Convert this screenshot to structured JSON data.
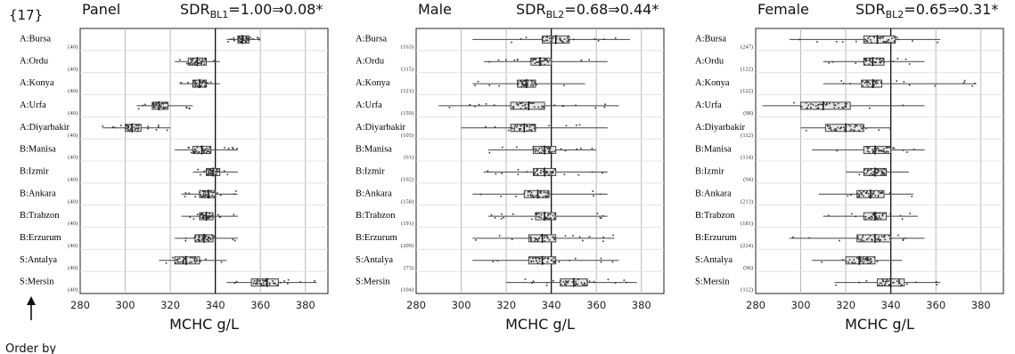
{
  "figure_label": "{17}",
  "order_label": "Order by",
  "colors": {
    "box_fill": "#e6e6e6",
    "box_stroke": "#444444",
    "dots": "#333333",
    "grid": "#b8b8b8",
    "axis": "#222222",
    "center_line": "#111111"
  },
  "chart_data": [
    {
      "type": "box",
      "title": "Panel",
      "annotation": {
        "prefix": "SDR",
        "sub": "BL1",
        "value": "=1.00⇒0.08*"
      },
      "xlabel": "MCHC  g/L",
      "xlim": [
        280,
        390
      ],
      "xticks": [
        280,
        300,
        320,
        340,
        360,
        380
      ],
      "reference_line": 340,
      "grid": true,
      "categories": [
        "A:Bursa",
        "A:Ordu",
        "A:Konya",
        "A:Urfa",
        "A:Diyarbakir",
        "B:Manisa",
        "B:Izmir",
        "B:Ankara",
        "B:Trabzon",
        "B:Erzurum",
        "S:Antalya",
        "S:Mersin"
      ],
      "n": [
        "(40)",
        "(40)",
        "(40)",
        "(40)",
        "(40)",
        "(40)",
        "(40)",
        "(40)",
        "(40)",
        "(40)",
        "(40)",
        "(40)"
      ],
      "boxes": [
        {
          "q1": 350,
          "median": 352,
          "q3": 355,
          "min": 345,
          "max": 360
        },
        {
          "q1": 328,
          "median": 332,
          "q3": 336,
          "min": 322,
          "max": 342
        },
        {
          "q1": 330,
          "median": 333,
          "q3": 336,
          "min": 324,
          "max": 342
        },
        {
          "q1": 312,
          "median": 315,
          "q3": 319,
          "min": 305,
          "max": 330
        },
        {
          "q1": 300,
          "median": 303,
          "q3": 307,
          "min": 290,
          "max": 320
        },
        {
          "q1": 330,
          "median": 334,
          "q3": 338,
          "min": 322,
          "max": 350
        },
        {
          "q1": 336,
          "median": 339,
          "q3": 342,
          "min": 330,
          "max": 350
        },
        {
          "q1": 333,
          "median": 337,
          "q3": 340,
          "min": 325,
          "max": 350
        },
        {
          "q1": 333,
          "median": 336,
          "q3": 339,
          "min": 325,
          "max": 350
        },
        {
          "q1": 331,
          "median": 335,
          "q3": 339,
          "min": 322,
          "max": 350
        },
        {
          "q1": 322,
          "median": 327,
          "q3": 333,
          "min": 315,
          "max": 345
        },
        {
          "q1": 356,
          "median": 363,
          "q3": 368,
          "min": 345,
          "max": 385
        }
      ]
    },
    {
      "type": "box",
      "title": "Male",
      "annotation": {
        "prefix": "SDR",
        "sub": "BL2",
        "value": "=0.68⇒0.44*"
      },
      "xlabel": "MCHC  g/L",
      "xlim": [
        280,
        390
      ],
      "xticks": [
        280,
        300,
        320,
        340,
        360,
        380
      ],
      "reference_line": 340,
      "grid": true,
      "categories": [
        "A:Bursa",
        "A:Ordu",
        "A:Konya",
        "A:Urfa",
        "A:Diyarbakir",
        "B:Manisa",
        "B:Izmir",
        "B:Ankara",
        "B:Trabzon",
        "B:Erzurum",
        "S:Antalya",
        "S:Mersin"
      ],
      "n": [
        "(163)",
        "(115)",
        "(121)",
        "(159)",
        "(105)",
        "(61)",
        "(102)",
        "(158)",
        "(191)",
        "(209)",
        "(73)",
        "(104)"
      ],
      "boxes": [
        {
          "q1": 336,
          "median": 342,
          "q3": 348,
          "min": 305,
          "max": 375
        },
        {
          "q1": 331,
          "median": 335,
          "q3": 340,
          "min": 310,
          "max": 365
        },
        {
          "q1": 325,
          "median": 329,
          "q3": 333,
          "min": 305,
          "max": 355
        },
        {
          "q1": 322,
          "median": 330,
          "q3": 337,
          "min": 290,
          "max": 370
        },
        {
          "q1": 322,
          "median": 328,
          "q3": 333,
          "min": 300,
          "max": 365
        },
        {
          "q1": 332,
          "median": 337,
          "q3": 342,
          "min": 312,
          "max": 360
        },
        {
          "q1": 332,
          "median": 337,
          "q3": 342,
          "min": 310,
          "max": 365
        },
        {
          "q1": 328,
          "median": 334,
          "q3": 339,
          "min": 305,
          "max": 365
        },
        {
          "q1": 333,
          "median": 337,
          "q3": 342,
          "min": 312,
          "max": 365
        },
        {
          "q1": 330,
          "median": 336,
          "q3": 342,
          "min": 305,
          "max": 368
        },
        {
          "q1": 330,
          "median": 336,
          "q3": 342,
          "min": 305,
          "max": 370
        },
        {
          "q1": 344,
          "median": 350,
          "q3": 356,
          "min": 320,
          "max": 378
        }
      ]
    },
    {
      "type": "box",
      "title": "Female",
      "annotation": {
        "prefix": "SDR",
        "sub": "BL2",
        "value": "=0.65⇒0.31*"
      },
      "xlabel": "MCHC  g/L",
      "xlim": [
        280,
        390
      ],
      "xticks": [
        280,
        300,
        320,
        340,
        360,
        380
      ],
      "reference_line": 340,
      "grid": true,
      "categories": [
        "A:Bursa",
        "A:Ordu",
        "A:Konya",
        "A:Urfa",
        "A:Diyarbakir",
        "B:Manisa",
        "B:Izmir",
        "B:Ankara",
        "B:Trabzon",
        "B:Erzurum",
        "S:Antalya",
        "S:Mersin"
      ],
      "n": [
        "(247)",
        "(122)",
        "(122)",
        "(98)",
        "(112)",
        "(114)",
        "(94)",
        "(213)",
        "(181)",
        "(224)",
        "(96)",
        "(112)"
      ],
      "boxes": [
        {
          "q1": 328,
          "median": 334,
          "q3": 342,
          "min": 295,
          "max": 362
        },
        {
          "q1": 328,
          "median": 332,
          "q3": 337,
          "min": 310,
          "max": 355
        },
        {
          "q1": 327,
          "median": 332,
          "q3": 336,
          "min": 310,
          "max": 378
        },
        {
          "q1": 300,
          "median": 310,
          "q3": 322,
          "min": 283,
          "max": 355
        },
        {
          "q1": 311,
          "median": 320,
          "q3": 328,
          "min": 300,
          "max": 340
        },
        {
          "q1": 328,
          "median": 333,
          "q3": 340,
          "min": 305,
          "max": 355
        },
        {
          "q1": 328,
          "median": 333,
          "q3": 338,
          "min": 320,
          "max": 348
        },
        {
          "q1": 325,
          "median": 331,
          "q3": 337,
          "min": 308,
          "max": 350
        },
        {
          "q1": 328,
          "median": 333,
          "q3": 338,
          "min": 310,
          "max": 352
        },
        {
          "q1": 325,
          "median": 333,
          "q3": 340,
          "min": 295,
          "max": 355
        },
        {
          "q1": 320,
          "median": 326,
          "q3": 333,
          "min": 305,
          "max": 345
        },
        {
          "q1": 334,
          "median": 340,
          "q3": 346,
          "min": 315,
          "max": 362
        }
      ]
    }
  ]
}
